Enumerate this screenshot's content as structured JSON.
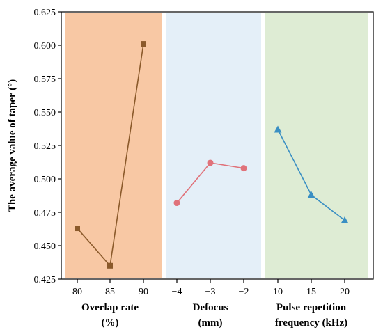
{
  "chart_data": {
    "type": "line",
    "ylabel": "The average value of taper (°)",
    "ylim": [
      0.425,
      0.625
    ],
    "yticks": [
      "0.425",
      "0.450",
      "0.475",
      "0.500",
      "0.525",
      "0.550",
      "0.575",
      "0.600",
      "0.625"
    ],
    "panels": [
      {
        "xlabel_line1": "Overlap rate",
        "xlabel_line2": "(%)",
        "x": [
          80,
          85,
          90
        ],
        "xtick_labels": [
          "80",
          "85",
          "90"
        ],
        "values": [
          0.463,
          0.435,
          0.601
        ],
        "marker": "square",
        "color": "#8b5a2b",
        "background": "#f8c8a4"
      },
      {
        "xlabel_line1": "Defocus",
        "xlabel_line2": "(mm)",
        "x": [
          -4,
          -3,
          -2
        ],
        "xtick_labels": [
          "−4",
          "−3",
          "−2"
        ],
        "values": [
          0.482,
          0.512,
          0.508
        ],
        "marker": "circle",
        "color": "#e0727a",
        "background": "#e4eff8"
      },
      {
        "xlabel_line1": "Pulse repetition",
        "xlabel_line2": "frequency (kHz)",
        "x": [
          10,
          15,
          20
        ],
        "xtick_labels": [
          "10",
          "15",
          "20"
        ],
        "values": [
          0.537,
          0.488,
          0.469
        ],
        "marker": "triangle",
        "color": "#3a8fc3",
        "background": "#deecd4"
      }
    ]
  }
}
